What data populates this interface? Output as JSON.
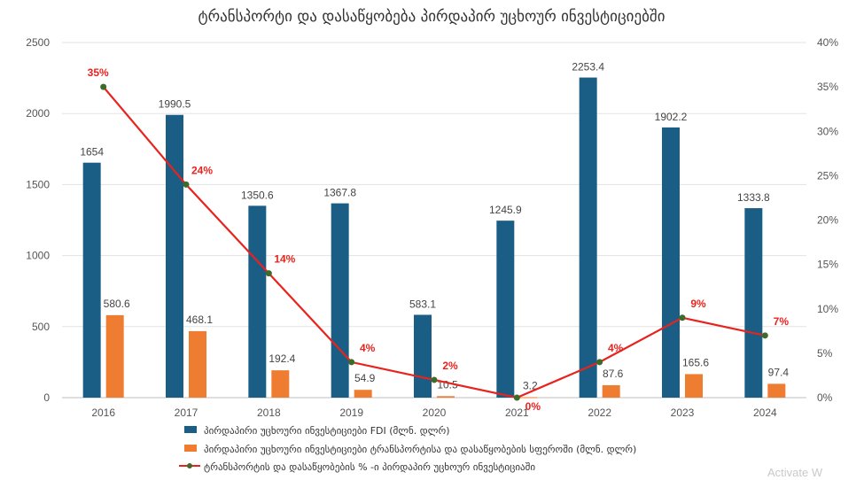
{
  "chart_data": {
    "type": "bar",
    "title": "ტრანსპორტი და დასაწყობება პირდაპირ უცხოურ ინვესტიციებში",
    "categories": [
      "2016",
      "2017",
      "2018",
      "2019",
      "2020",
      "2021",
      "2022",
      "2023",
      "2024"
    ],
    "y_left": {
      "ylim": [
        0,
        2500
      ],
      "ticks": [
        "0",
        "500",
        "1000",
        "1500",
        "2000",
        "2500"
      ]
    },
    "y_right": {
      "ylim": [
        0,
        0.4
      ],
      "ticks": [
        "0%",
        "5%",
        "10%",
        "15%",
        "20%",
        "25%",
        "30%",
        "35%",
        "40%"
      ]
    },
    "grid": true,
    "legend_position": "bottom",
    "series": [
      {
        "name": "პირდაპირი უცხოური ინვესტიციები FDI (მლნ. დლრ)",
        "type": "bar",
        "axis": "left",
        "color": "#1b5e85",
        "values": [
          1654,
          1990.5,
          1350.6,
          1367.8,
          583.1,
          1245.9,
          2253.4,
          1902.2,
          1333.8
        ],
        "labels": [
          "1654",
          "1990.5",
          "1350.6",
          "1367.8",
          "583.1",
          "1245.9",
          "2253.4",
          "1902.2",
          "1333.8"
        ]
      },
      {
        "name": "პირდაპირი უცხოური ინვესტიციები ტრანსპორტისა და დასაწყობების სფეროში (მლნ. დლრ)",
        "type": "bar",
        "axis": "left",
        "color": "#ee7c31",
        "values": [
          580.6,
          468.1,
          192.4,
          54.9,
          10.5,
          3.2,
          87.6,
          165.6,
          97.4
        ],
        "labels": [
          "580.6",
          "468.1",
          "192.4",
          "54.9",
          "10.5",
          "3.2",
          "87.6",
          "165.6",
          "97.4"
        ]
      },
      {
        "name": "ტრანსპორტის და დასაწყობების % -ი პირდაპირ უცხოურ ინვესტიციაში",
        "type": "line",
        "axis": "right",
        "color": "#e8231e",
        "marker_color": "#3d6b2a",
        "values": [
          0.35,
          0.24,
          0.14,
          0.04,
          0.02,
          0.0,
          0.04,
          0.09,
          0.07
        ],
        "labels": [
          "35%",
          "24%",
          "14%",
          "4%",
          "2%",
          "0%",
          "4%",
          "9%",
          "7%"
        ]
      }
    ]
  },
  "watermark": "Activate W"
}
